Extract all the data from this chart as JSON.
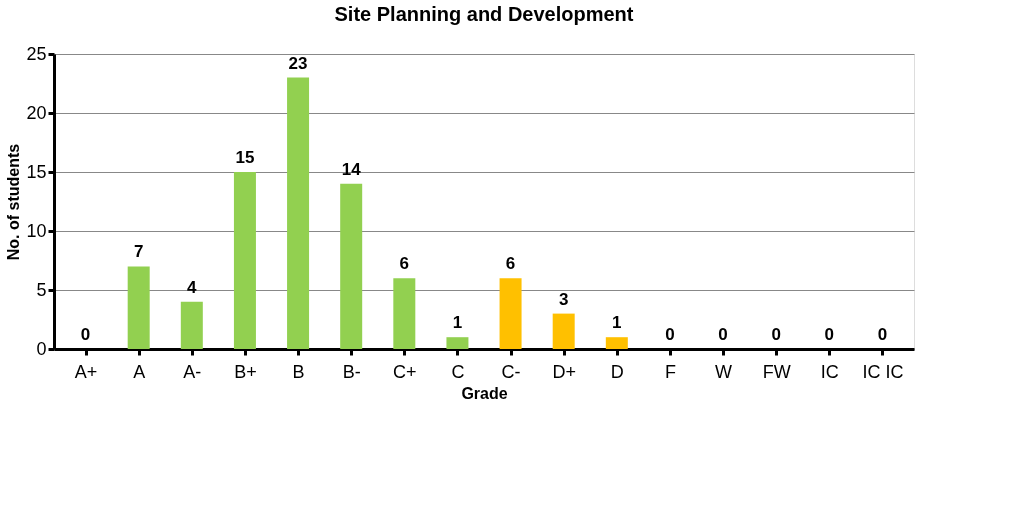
{
  "chart_data": {
    "type": "bar",
    "title": "Site Planning and Development",
    "xlabel": "Grade",
    "ylabel": "No. of students",
    "categories": [
      "A+",
      "A",
      "A-",
      "B+",
      "B",
      "B-",
      "C+",
      "C",
      "C-",
      "D+",
      "D",
      "F",
      "W",
      "FW",
      "IC",
      "IC IC"
    ],
    "values": [
      0,
      7,
      4,
      15,
      23,
      14,
      6,
      1,
      6,
      3,
      1,
      0,
      0,
      0,
      0,
      0
    ],
    "colors": [
      "#92d050",
      "#92d050",
      "#92d050",
      "#92d050",
      "#92d050",
      "#92d050",
      "#92d050",
      "#92d050",
      "#ffc000",
      "#ffc000",
      "#ffc000",
      "#ffc000",
      "#ffc000",
      "#ffc000",
      "#ffc000",
      "#ffc000"
    ],
    "ylim": [
      0,
      25
    ],
    "yticks": [
      0,
      5,
      10,
      15,
      20,
      25
    ],
    "grid": "y",
    "data_labels": true
  }
}
